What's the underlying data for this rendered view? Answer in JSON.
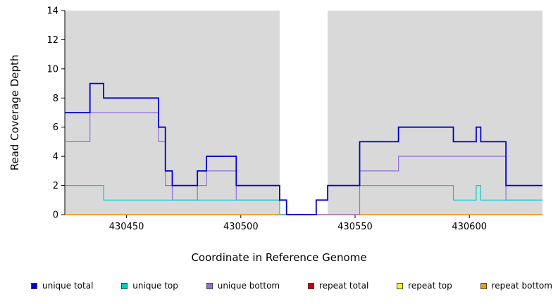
{
  "chart_data": {
    "type": "line",
    "step": true,
    "title": "",
    "xlabel": "Coordinate in Reference Genome",
    "ylabel": "Read Coverage Depth",
    "x_range": [
      430423,
      430632
    ],
    "y_range": [
      0,
      14
    ],
    "x_ticks": [
      430450,
      430500,
      430550,
      430600
    ],
    "y_ticks": [
      0,
      2,
      4,
      6,
      8,
      10,
      12,
      14
    ],
    "grid": false,
    "plot_bg": "#d9d9d9",
    "gap_region": {
      "x_start": 430517,
      "x_end": 430538,
      "color": "#ffffff"
    },
    "legend_position": "bottom",
    "draw_order": [
      4,
      3,
      5,
      2,
      1,
      0
    ],
    "series": [
      {
        "name": "unique total",
        "color": "#0000cd",
        "width": 1.8,
        "points": [
          [
            430423,
            7
          ],
          [
            430434,
            9
          ],
          [
            430440,
            8
          ],
          [
            430464,
            6
          ],
          [
            430467,
            3
          ],
          [
            430470,
            2
          ],
          [
            430481,
            3
          ],
          [
            430485,
            4
          ],
          [
            430498,
            2
          ],
          [
            430517,
            1
          ],
          [
            430520,
            0
          ],
          [
            430533,
            1
          ],
          [
            430538,
            2
          ],
          [
            430552,
            5
          ],
          [
            430569,
            6
          ],
          [
            430593,
            5
          ],
          [
            430603,
            6
          ],
          [
            430605,
            5
          ],
          [
            430616,
            2
          ]
        ]
      },
      {
        "name": "unique top",
        "color": "#00cccc",
        "width": 1.2,
        "points": [
          [
            430423,
            2
          ],
          [
            430440,
            1
          ],
          [
            430517,
            0
          ],
          [
            430533,
            1
          ],
          [
            430538,
            2
          ],
          [
            430593,
            1
          ],
          [
            430603,
            2
          ],
          [
            430605,
            1
          ]
        ]
      },
      {
        "name": "unique bottom",
        "color": "#9370db",
        "width": 1.2,
        "points": [
          [
            430423,
            5
          ],
          [
            430434,
            7
          ],
          [
            430464,
            5
          ],
          [
            430467,
            2
          ],
          [
            430470,
            1
          ],
          [
            430481,
            2
          ],
          [
            430485,
            3
          ],
          [
            430498,
            1
          ],
          [
            430520,
            0
          ],
          [
            430552,
            3
          ],
          [
            430569,
            4
          ],
          [
            430616,
            1
          ]
        ]
      },
      {
        "name": "repeat total",
        "color": "#cc0000",
        "width": 1.2,
        "points": [
          [
            430423,
            0
          ]
        ]
      },
      {
        "name": "repeat top",
        "color": "#ffff00",
        "width": 1.2,
        "points": [
          [
            430423,
            0
          ]
        ]
      },
      {
        "name": "repeat bottom",
        "color": "#ff9900",
        "width": 1.2,
        "points": [
          [
            430423,
            0
          ]
        ]
      }
    ]
  }
}
